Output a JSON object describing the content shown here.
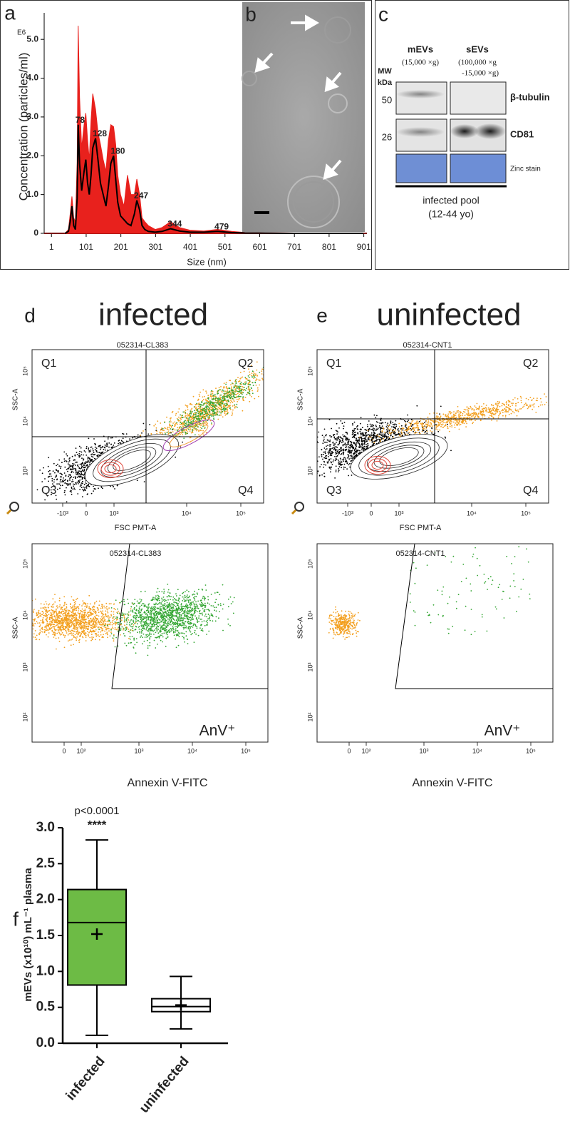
{
  "panel_labels": [
    "a",
    "b",
    "c",
    "d",
    "e",
    "f"
  ],
  "chart_data": [
    {
      "type": "line",
      "y_label": "Concentration (particles/ml)",
      "y_multiplier": "E6",
      "x_label": "Size (nm)",
      "x": [
        40,
        50,
        55,
        60,
        65,
        70,
        75,
        78,
        82,
        88,
        95,
        100,
        105,
        110,
        115,
        120,
        128,
        135,
        142,
        150,
        158,
        165,
        172,
        180,
        186,
        192,
        200,
        210,
        220,
        230,
        240,
        247,
        255,
        262,
        270,
        280,
        300,
        320,
        344,
        370,
        400,
        440,
        479,
        520,
        560,
        600,
        700,
        900
      ],
      "series": [
        {
          "color": "#e8211d",
          "fill": true,
          "values": [
            0,
            0.1,
            0.5,
            0.95,
            0.4,
            0.3,
            1.8,
            5.35,
            3.5,
            2.2,
            2.8,
            3.1,
            2.4,
            1.9,
            2.9,
            3.6,
            3.2,
            2.6,
            2.3,
            1.9,
            1.6,
            2.4,
            2.8,
            2.75,
            2.3,
            1.5,
            1.0,
            0.7,
            1.5,
            1.0,
            1.0,
            1.4,
            1.0,
            0.4,
            0.3,
            0.2,
            0.1,
            0.15,
            0.3,
            0.15,
            0.08,
            0.06,
            0.1,
            0.05,
            0.02,
            0.02,
            0.01,
            0
          ]
        },
        {
          "color": "#000000",
          "fill": false,
          "values": [
            0,
            0.05,
            0.3,
            0.7,
            0.2,
            0.1,
            0.9,
            2.8,
            1.8,
            1.1,
            1.6,
            1.9,
            1.3,
            1.0,
            1.5,
            2.2,
            2.45,
            1.9,
            1.3,
            1.0,
            0.7,
            1.2,
            1.8,
            2.0,
            1.4,
            0.8,
            0.45,
            0.35,
            0.25,
            0.2,
            0.5,
            0.85,
            0.6,
            0.2,
            0.1,
            0.05,
            0.03,
            0.05,
            0.12,
            0.06,
            0.03,
            0.03,
            0.05,
            0.02,
            0.01,
            0.01,
            0,
            0
          ]
        }
      ],
      "peak_labels": {
        "color": "#1f5fa8",
        "x": [
          78,
          128,
          180,
          247,
          344,
          479
        ]
      },
      "xlim": [
        -20,
        910
      ],
      "xticks": [
        1,
        101,
        201,
        301,
        401,
        501,
        601,
        701,
        801,
        901
      ],
      "ylim": [
        0,
        5.5
      ],
      "yticks": [
        0,
        {
          "value": 1,
          "label": "1.0"
        },
        {
          "value": 2,
          "label": "2.0"
        },
        {
          "value": 3,
          "label": "3.0"
        },
        {
          "value": 4,
          "label": "4.0"
        },
        {
          "value": 5,
          "label": "5.0"
        }
      ]
    },
    {
      "type": "box",
      "y_label": "mEVs (x10¹⁰) mL⁻¹ plasma",
      "categories": [
        "infected",
        "uninfected"
      ],
      "boxes": [
        {
          "whisker_low": 0.11,
          "q1": 0.81,
          "median": 1.68,
          "q3": 2.14,
          "whisker_high": 2.83,
          "mean": 1.52,
          "color": "#6dbb45"
        },
        {
          "whisker_low": 0.2,
          "q1": 0.44,
          "median": 0.51,
          "q3": 0.62,
          "whisker_high": 0.93,
          "mean": 0.53,
          "color": "#ffffff"
        }
      ],
      "annotation": {
        "text": "p<0.0001",
        "stars": "****"
      },
      "ylim": [
        0,
        3
      ],
      "yticks": [
        {
          "value": 0,
          "label": "0.0"
        },
        0.5,
        {
          "value": 1,
          "label": "1.0"
        },
        1.5,
        {
          "value": 2,
          "label": "2.0"
        },
        2.5,
        {
          "value": 3,
          "label": "3.0"
        }
      ]
    }
  ],
  "blot": {
    "columns": [
      {
        "name": "mEVs",
        "condition": [
          "(15,000 ×g)"
        ]
      },
      {
        "name": "sEVs",
        "condition": [
          "(100,000 ×g",
          "-15,000 ×g)"
        ]
      }
    ],
    "mw_label": [
      "MW",
      "kDa"
    ],
    "rows": [
      {
        "mw": "50",
        "label": "β-tubulin"
      },
      {
        "mw": "26",
        "label": "CD81"
      },
      {
        "label": "Zinc stain"
      }
    ],
    "sample": [
      "infected pool",
      "(12-44 yo)"
    ]
  },
  "flow": [
    {
      "title": "infected",
      "plots": [
        {
          "id": "052314-CL383",
          "quadrants": [
            "Q1",
            "Q2",
            "Q3",
            "Q4"
          ],
          "y_label": "SSC-A",
          "x_label": "FSC PMT-A",
          "yticks": [
            "10⁵",
            "10⁴",
            "10³"
          ],
          "xticks": [
            "-10³",
            "0",
            "10³",
            "10⁴",
            "10⁵"
          ]
        },
        {
          "id": "052314-CL383",
          "gate": "AnV⁺",
          "y_label": "SSC-A",
          "x_label": "Annexin V-FITC",
          "yticks": [
            "10⁵",
            "10⁴",
            "10³",
            "10²"
          ],
          "xticks": [
            "0",
            "10²",
            "10³",
            "10⁴",
            "10⁵"
          ]
        }
      ]
    },
    {
      "title": "uninfected",
      "plots": [
        {
          "id": "052314-CNT1",
          "quadrants": [
            "Q1",
            "Q2",
            "Q3",
            "Q4"
          ],
          "y_label": "SSC-A",
          "x_label": "FSC PMT-A",
          "yticks": [
            "10⁵",
            "10⁴",
            "10³"
          ],
          "xticks": [
            "-10³",
            "0",
            "10³",
            "10⁴",
            "10⁵"
          ]
        },
        {
          "id": "052314-CNT1",
          "gate": "AnV⁺",
          "y_label": "SSC-A",
          "x_label": "Annexin V-FITC",
          "yticks": [
            "10⁵",
            "10⁴",
            "10³",
            "10²"
          ],
          "xticks": [
            "0",
            "10²",
            "10³",
            "10⁴",
            "10⁵"
          ]
        }
      ]
    }
  ]
}
